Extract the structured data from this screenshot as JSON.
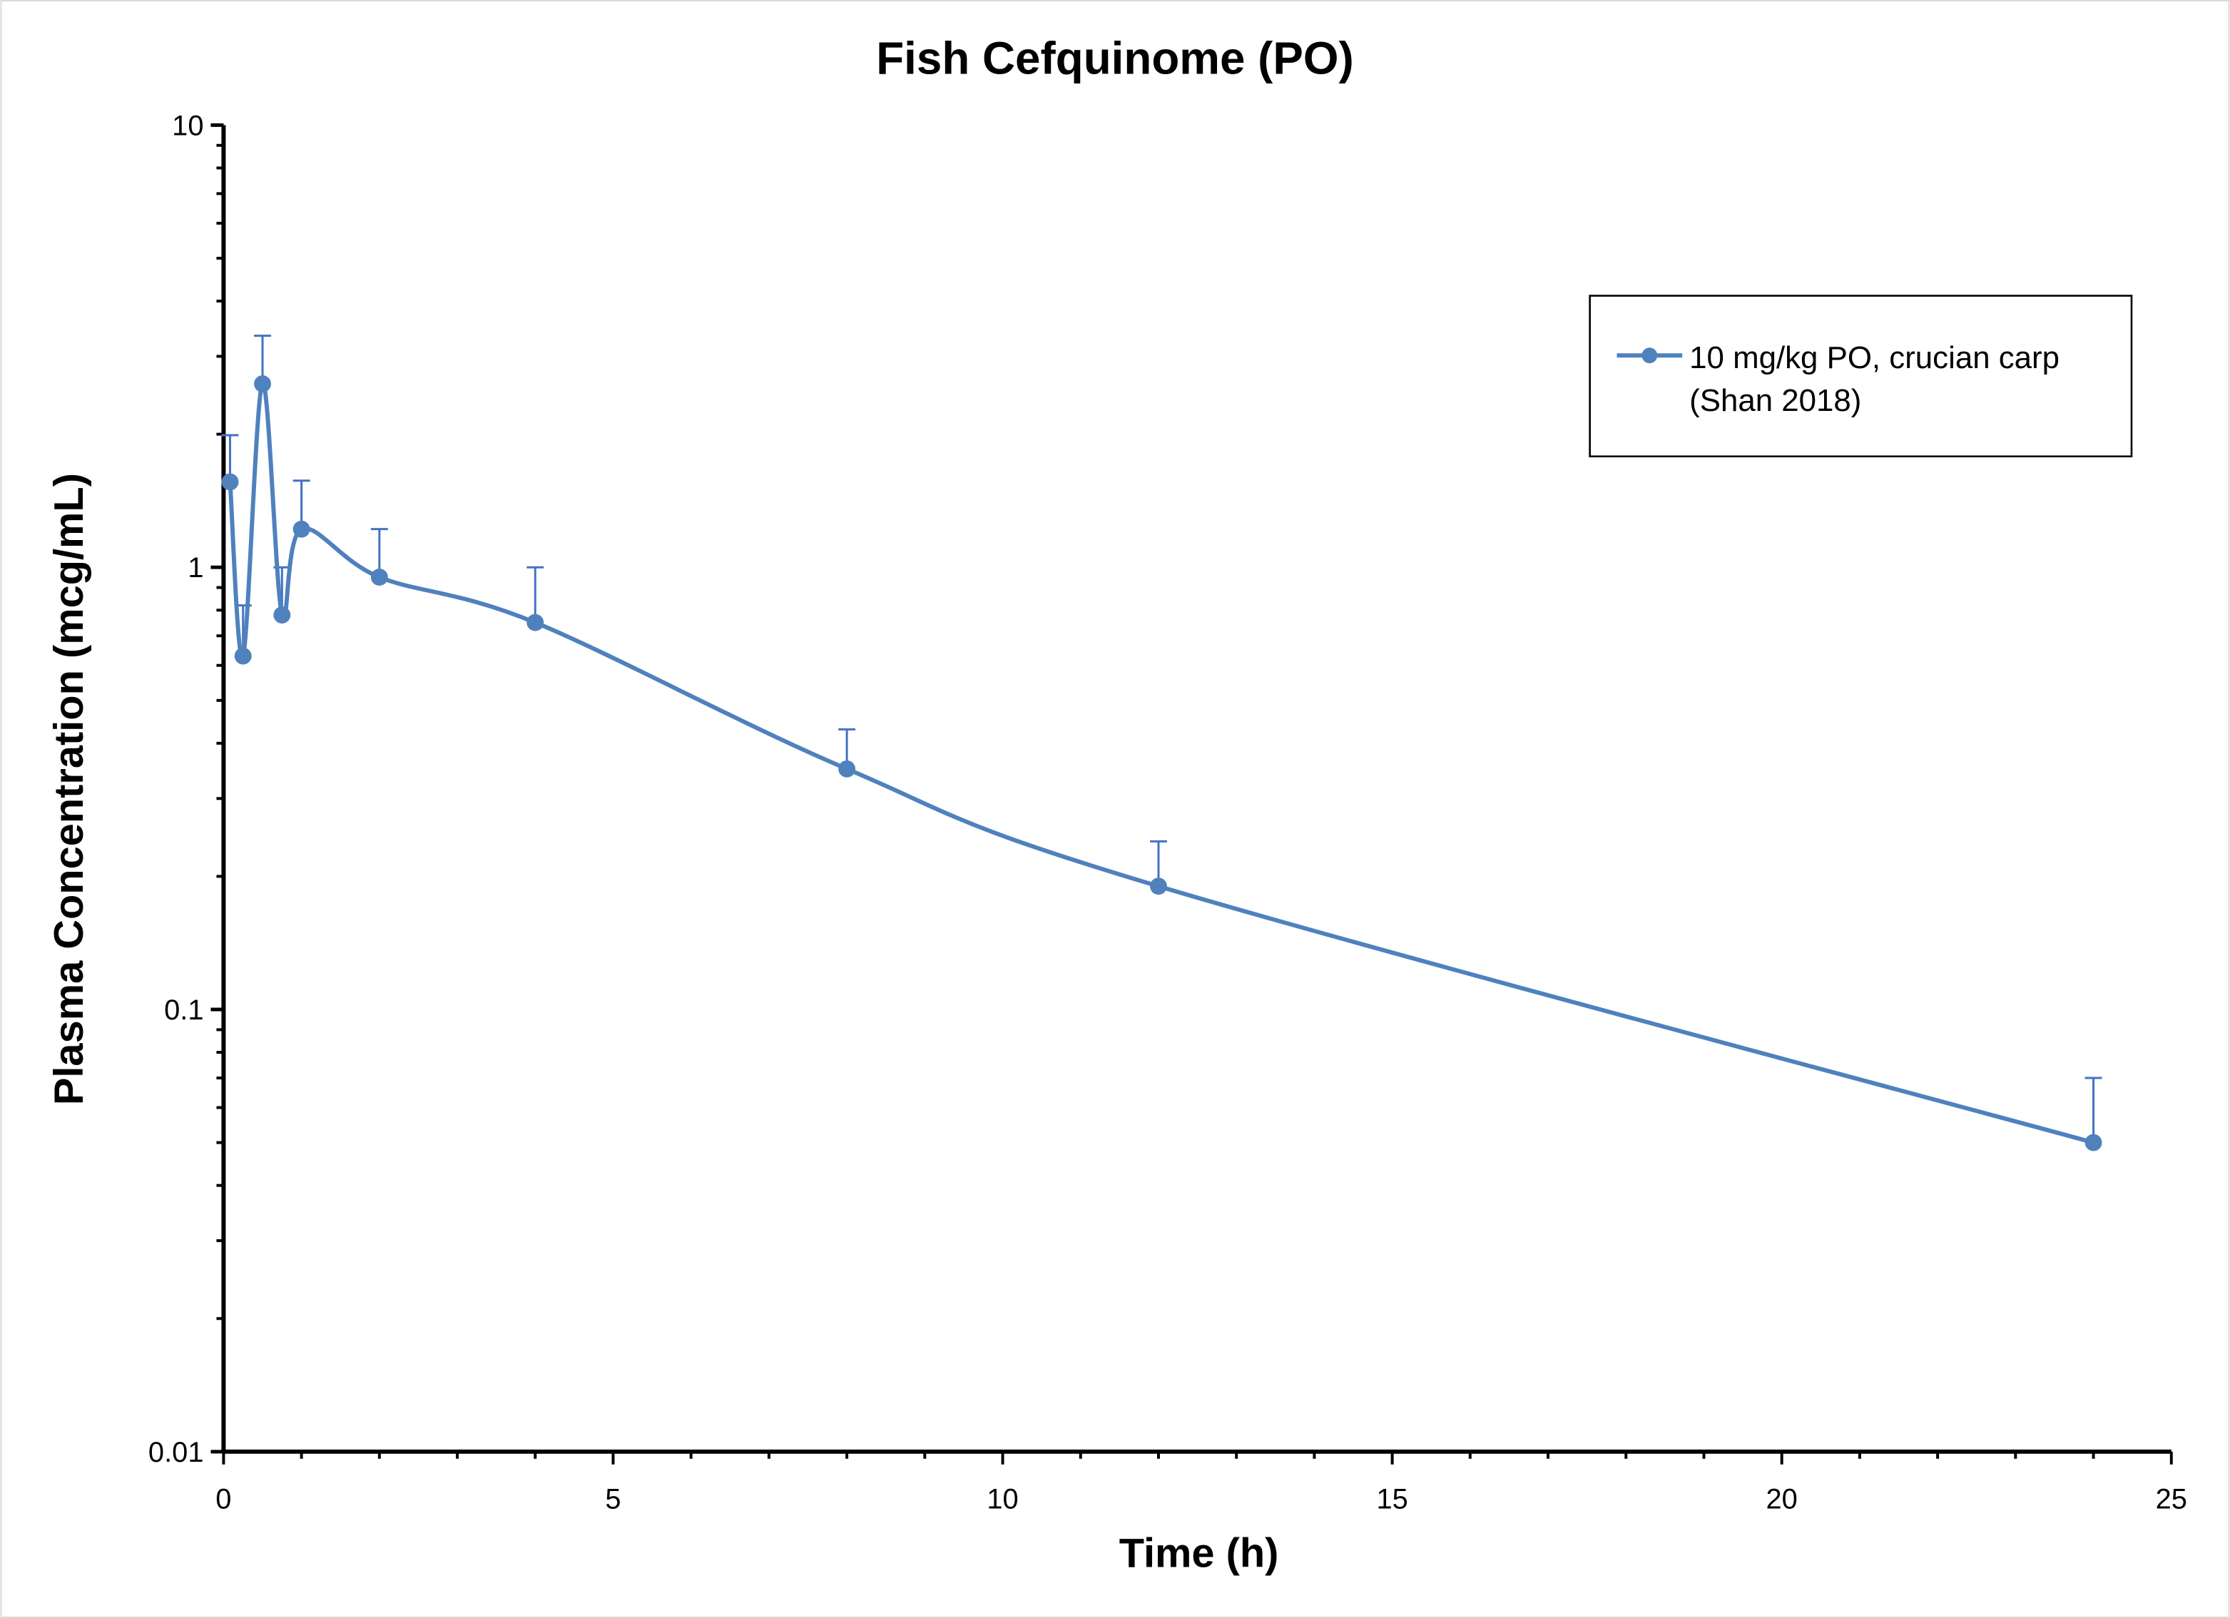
{
  "chart_data": {
    "type": "line",
    "title": "Fish Cefquinome (PO)",
    "xlabel": "Time (h)",
    "ylabel": "Plasma Concentration (mcg/mL)",
    "xlim": [
      0,
      25
    ],
    "ylim": [
      0.01,
      10
    ],
    "yscale": "log",
    "xticks": [
      "0",
      "5",
      "10",
      "15",
      "20",
      "25"
    ],
    "yticks": [
      "0.01",
      "0.1",
      "1",
      "10"
    ],
    "grid": false,
    "legend_position": "top-right",
    "smoothed": true,
    "series": [
      {
        "name": "10 mg/kg PO, crucian carp (Shan 2018)",
        "legend_lines": [
          "10 mg/kg PO, crucian carp",
          "(Shan 2018)"
        ],
        "color": "#4F81BD",
        "x": [
          0.083,
          0.25,
          0.5,
          0.75,
          1,
          2,
          4,
          8,
          12,
          24
        ],
        "y": [
          1.56,
          0.63,
          2.6,
          0.78,
          1.22,
          0.95,
          0.75,
          0.35,
          0.19,
          0.05
        ],
        "error_upper": [
          1.99,
          0.82,
          3.34,
          1.0,
          1.57,
          1.22,
          1.0,
          0.43,
          0.24,
          0.07
        ]
      }
    ]
  }
}
